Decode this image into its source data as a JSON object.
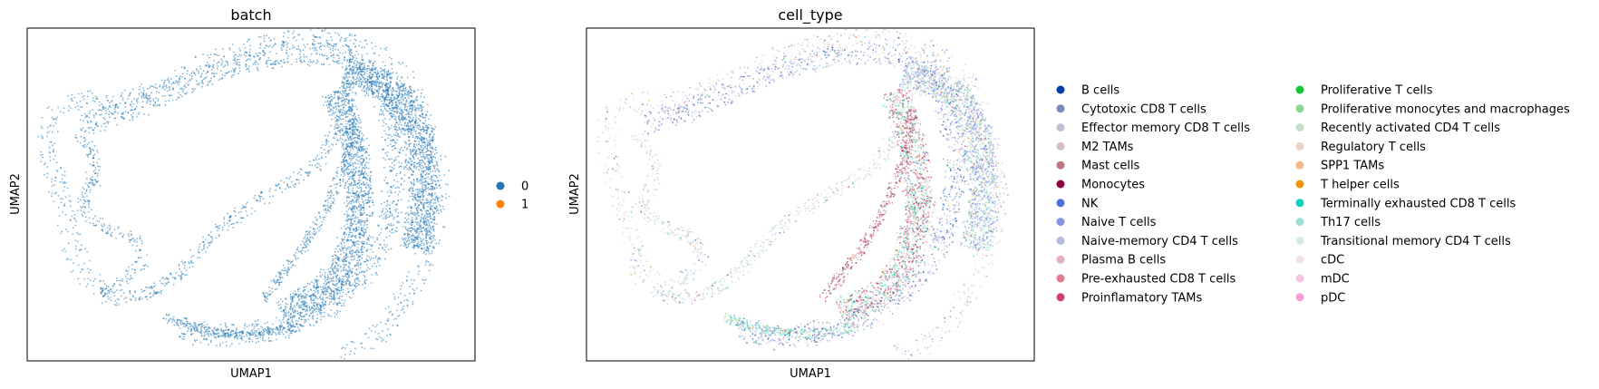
{
  "chart_data": [
    {
      "type": "scatter",
      "title": "batch",
      "xlabel": "UMAP1",
      "ylabel": "UMAP2",
      "grid": false,
      "ticks": false,
      "legend_placement": "right",
      "legend": [
        {
          "label": "0",
          "color": "#1f77b4"
        },
        {
          "label": "1",
          "color": "#ff7f0e"
        }
      ]
    },
    {
      "type": "scatter",
      "title": "cell_type",
      "xlabel": "UMAP1",
      "ylabel": "UMAP2",
      "grid": false,
      "ticks": false,
      "legend_placement": "right",
      "legend": [
        {
          "label": "B cells",
          "color": "#023fa5"
        },
        {
          "label": "Cytotoxic CD8 T cells",
          "color": "#7d87b9"
        },
        {
          "label": "Effector memory CD8 T cells",
          "color": "#bec1d4"
        },
        {
          "label": "M2 TAMs",
          "color": "#d6bcc0"
        },
        {
          "label": "Mast cells",
          "color": "#bb7784"
        },
        {
          "label": "Monocytes",
          "color": "#8e063b"
        },
        {
          "label": "NK",
          "color": "#4a6fe3"
        },
        {
          "label": "Naive T cells",
          "color": "#8595e1"
        },
        {
          "label": "Naive-memory CD4 T cells",
          "color": "#b5bbe3"
        },
        {
          "label": "Plasma B cells",
          "color": "#e6afb9"
        },
        {
          "label": "Pre-exhausted CD8 T cells",
          "color": "#e07b91"
        },
        {
          "label": "Proinflamatory TAMs",
          "color": "#d33f6a"
        },
        {
          "label": "Proliferative T cells",
          "color": "#11c638"
        },
        {
          "label": "Proliferative monocytes and macrophages",
          "color": "#8dd593"
        },
        {
          "label": "Recently activated CD4 T cells",
          "color": "#c6dec7"
        },
        {
          "label": "Regulatory T cells",
          "color": "#ead3c6"
        },
        {
          "label": "SPP1 TAMs",
          "color": "#f0b98d"
        },
        {
          "label": "T helper cells",
          "color": "#ef9708"
        },
        {
          "label": "Terminally exhausted CD8 T cells",
          "color": "#0fcfc0"
        },
        {
          "label": "Th17 cells",
          "color": "#9cded6"
        },
        {
          "label": "Transitional memory CD4 T cells",
          "color": "#d5eae7"
        },
        {
          "label": "cDC",
          "color": "#f3e1eb"
        },
        {
          "label": "mDC",
          "color": "#f6c4e1"
        },
        {
          "label": "pDC",
          "color": "#f79cd4"
        }
      ]
    }
  ]
}
